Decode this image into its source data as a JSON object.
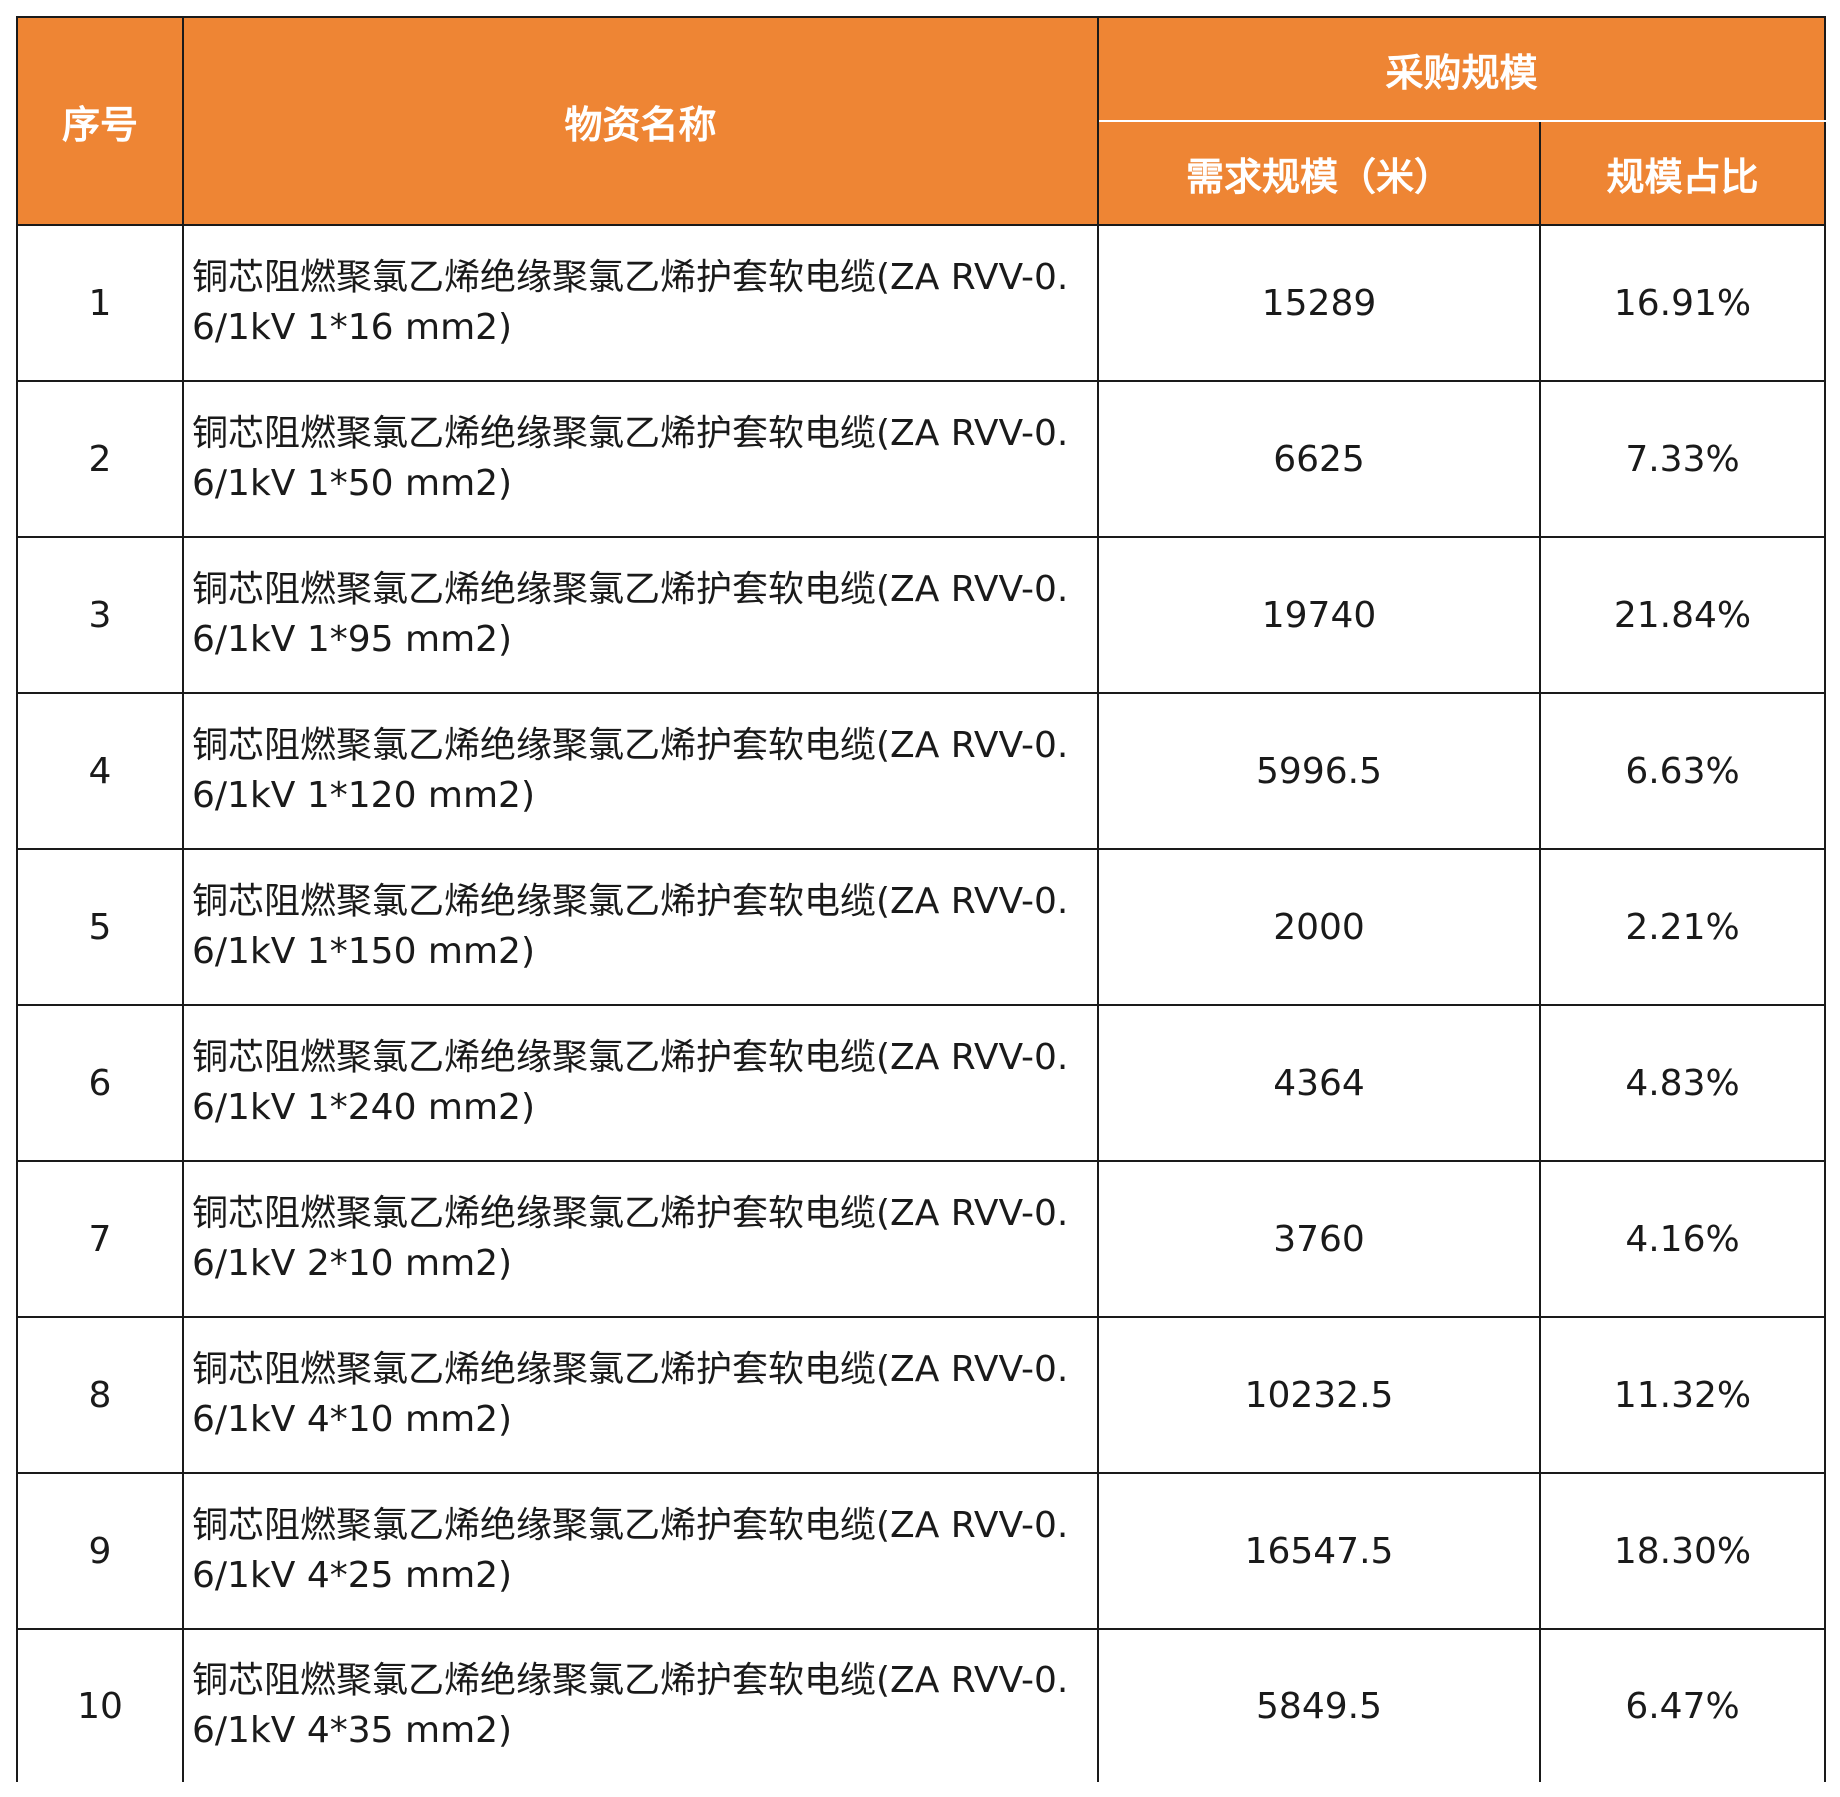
{
  "header": {
    "no": "序号",
    "name": "物资名称",
    "group": "采购规模",
    "qty": "需求规模（米）",
    "pct": "规模占比"
  },
  "rows": [
    {
      "no": "1",
      "name": "铜芯阻燃聚氯乙烯绝缘聚氯乙烯护套软电缆(ZA RVV-0.6/1kV 1*16 mm2)",
      "qty": "15289",
      "pct": "16.91%"
    },
    {
      "no": "2",
      "name": "铜芯阻燃聚氯乙烯绝缘聚氯乙烯护套软电缆(ZA RVV-0.6/1kV 1*50 mm2)",
      "qty": "6625",
      "pct": "7.33%"
    },
    {
      "no": "3",
      "name": "铜芯阻燃聚氯乙烯绝缘聚氯乙烯护套软电缆(ZA RVV-0.6/1kV 1*95 mm2)",
      "qty": "19740",
      "pct": "21.84%"
    },
    {
      "no": "4",
      "name": "铜芯阻燃聚氯乙烯绝缘聚氯乙烯护套软电缆(ZA RVV-0.6/1kV 1*120 mm2)",
      "qty": "5996.5",
      "pct": "6.63%"
    },
    {
      "no": "5",
      "name": "铜芯阻燃聚氯乙烯绝缘聚氯乙烯护套软电缆(ZA RVV-0.6/1kV 1*150 mm2)",
      "qty": "2000",
      "pct": "2.21%"
    },
    {
      "no": "6",
      "name": "铜芯阻燃聚氯乙烯绝缘聚氯乙烯护套软电缆(ZA RVV-0.6/1kV 1*240 mm2)",
      "qty": "4364",
      "pct": "4.83%"
    },
    {
      "no": "7",
      "name": "铜芯阻燃聚氯乙烯绝缘聚氯乙烯护套软电缆(ZA RVV-0.6/1kV 2*10 mm2)",
      "qty": "3760",
      "pct": "4.16%"
    },
    {
      "no": "8",
      "name": "铜芯阻燃聚氯乙烯绝缘聚氯乙烯护套软电缆(ZA RVV-0.6/1kV 4*10 mm2)",
      "qty": "10232.5",
      "pct": "11.32%"
    },
    {
      "no": "9",
      "name": "铜芯阻燃聚氯乙烯绝缘聚氯乙烯护套软电缆(ZA RVV-0.6/1kV 4*25 mm2)",
      "qty": "16547.5",
      "pct": "18.30%"
    },
    {
      "no": "10",
      "name": "铜芯阻燃聚氯乙烯绝缘聚氯乙烯护套软电缆(ZA RVV-0.6/1kV 4*35 mm2)",
      "qty": "5849.5",
      "pct": "6.47%"
    }
  ]
}
